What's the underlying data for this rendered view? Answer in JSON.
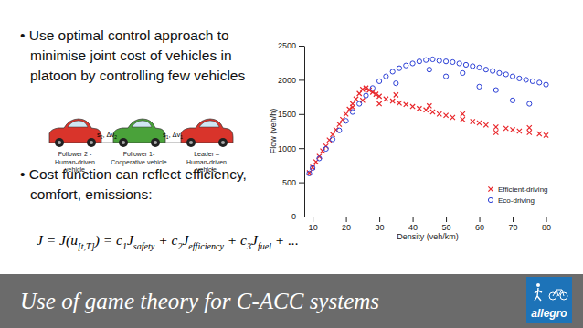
{
  "chart_data": {
    "type": "scatter",
    "x_label": "Density (veh/km)",
    "y_label": "Flow (veh/h)",
    "xlim": [
      7.5,
      81.5
    ],
    "xticks": [
      10,
      20,
      30,
      40,
      50,
      60,
      70,
      80
    ],
    "ylim": [
      0,
      2500
    ],
    "yticks": [
      0,
      500,
      1000,
      1500,
      2000,
      2500
    ],
    "legend": "lower right",
    "series": [
      {
        "name": "Efficient-driving",
        "color": "#e8262a",
        "marker": "x",
        "x": [
          9,
          10,
          11,
          12,
          13,
          14,
          15,
          16,
          17,
          18,
          19,
          20,
          21,
          22,
          23,
          24,
          25,
          26,
          27,
          28,
          29,
          30,
          32,
          34,
          36,
          38,
          40,
          42,
          44,
          46,
          48,
          50,
          52,
          55,
          58,
          60,
          62,
          65,
          68,
          70,
          72,
          75,
          78,
          80,
          22,
          25,
          30,
          35,
          45,
          55,
          65,
          75
        ],
        "values": [
          640,
          720,
          800,
          880,
          960,
          1030,
          1120,
          1200,
          1270,
          1350,
          1420,
          1500,
          1570,
          1650,
          1720,
          1800,
          1860,
          1880,
          1850,
          1820,
          1790,
          1760,
          1720,
          1690,
          1660,
          1640,
          1610,
          1580,
          1560,
          1530,
          1500,
          1480,
          1450,
          1420,
          1390,
          1370,
          1340,
          1310,
          1290,
          1270,
          1250,
          1230,
          1210,
          1190,
          1600,
          1700,
          1650,
          1780,
          1620,
          1500,
          1230,
          1300
        ]
      },
      {
        "name": "Eco-driving",
        "color": "#2b3fd6",
        "marker": "circle",
        "x": [
          9,
          10,
          12,
          14,
          16,
          18,
          20,
          22,
          24,
          26,
          28,
          30,
          32,
          34,
          36,
          38,
          40,
          42,
          44,
          46,
          48,
          50,
          52,
          54,
          56,
          58,
          60,
          62,
          64,
          66,
          68,
          70,
          72,
          74,
          76,
          78,
          80,
          35,
          45,
          50,
          55,
          60,
          65,
          70,
          75
        ],
        "values": [
          630,
          710,
          850,
          990,
          1130,
          1260,
          1400,
          1530,
          1650,
          1770,
          1880,
          1980,
          2050,
          2120,
          2170,
          2210,
          2240,
          2270,
          2290,
          2300,
          2280,
          2270,
          2260,
          2240,
          2220,
          2200,
          2180,
          2150,
          2130,
          2100,
          2080,
          2050,
          2020,
          2000,
          1980,
          1960,
          1930,
          1950,
          2150,
          2050,
          2100,
          1900,
          1850,
          1700,
          1650
        ]
      }
    ]
  },
  "slide": {
    "bullets": [
      [
        "• Use optimal control approach to",
        "minimise joint cost of vehicles in",
        "platoon by controlling few vehicles"
      ],
      [
        "• Cost function can reflect efficiency,",
        "comfort, emissions:"
      ]
    ],
    "equation": [
      {
        "t": "J = J(u"
      },
      {
        "sub": "[t,T]"
      },
      {
        "t": ") = c"
      },
      {
        "sub": "1"
      },
      {
        "t": "J"
      },
      {
        "sub": "safety"
      },
      {
        "t": " + c"
      },
      {
        "sub": "2"
      },
      {
        "t": "J"
      },
      {
        "sub": "efficiency"
      },
      {
        "t": " + c"
      },
      {
        "sub": "3"
      },
      {
        "t": "J"
      },
      {
        "sub": "fuel"
      },
      {
        "t": " + ..."
      }
    ],
    "vehicles": [
      {
        "label": [
          "Follower 2 -",
          "Human-driven",
          "vehicle"
        ],
        "color": "#d9342b"
      },
      {
        "label": [
          "Follower 1-",
          "Cooperative vehicle"
        ],
        "color": "#4aa23a"
      },
      {
        "label": [
          "Leader –",
          "Human-driven",
          "vehicle"
        ],
        "color": "#d9342b"
      }
    ],
    "gaps": [
      [
        {
          "t": "s"
        },
        {
          "sub": "2"
        },
        {
          "t": ", Δv"
        },
        {
          "sub": "2"
        }
      ],
      [
        {
          "t": "s"
        },
        {
          "sub": "1"
        },
        {
          "t": ", Δv"
        },
        {
          "sub": "1"
        }
      ]
    ],
    "footer": "Use of game theory for C-ACC systems",
    "logo": "allegro"
  }
}
